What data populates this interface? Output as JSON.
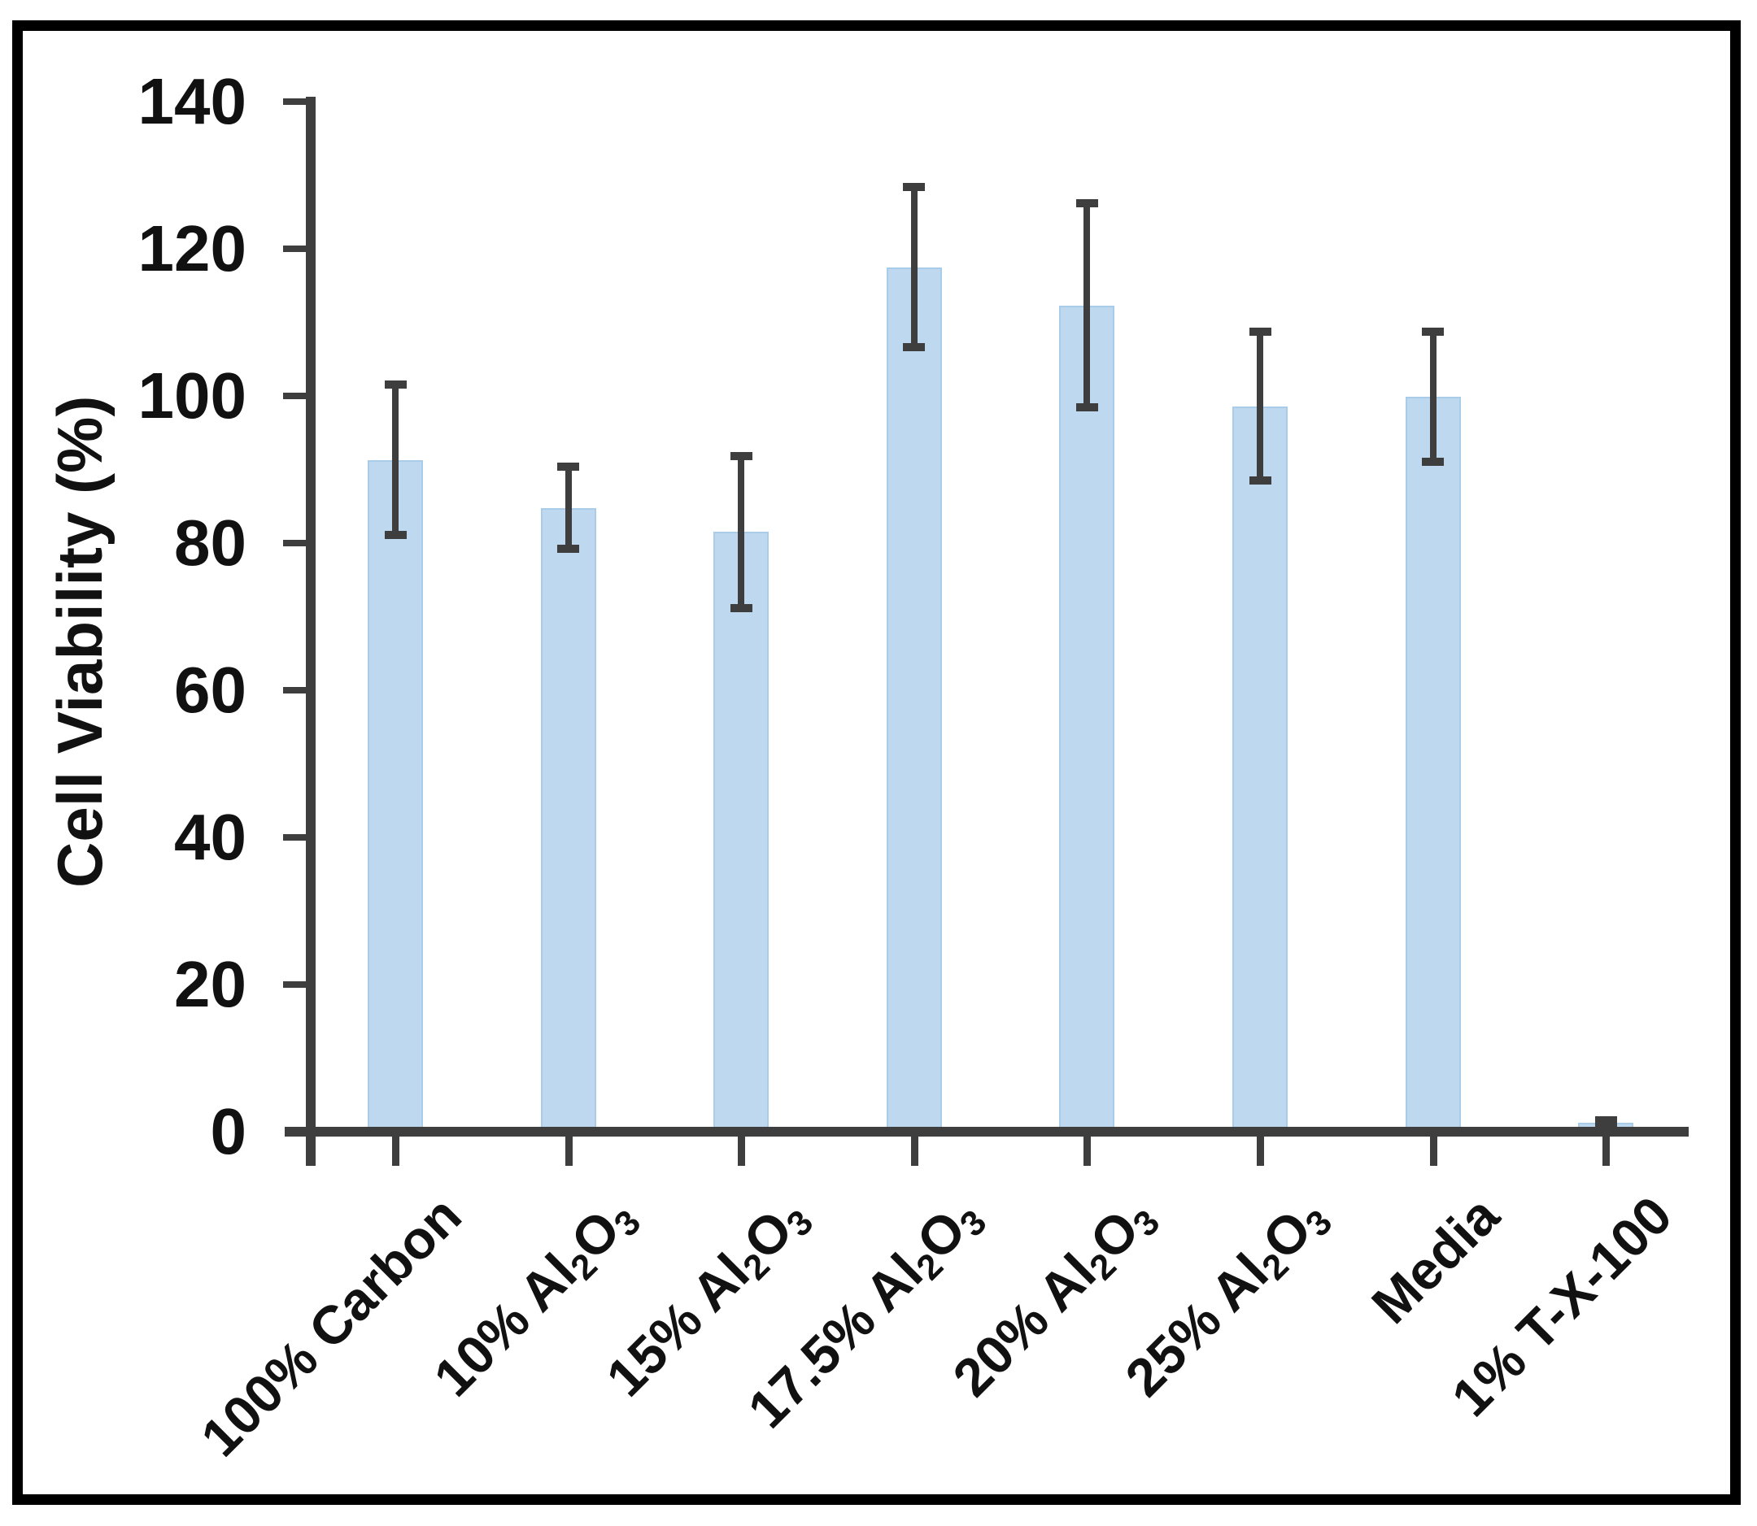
{
  "window": {
    "background": "#ffffff",
    "frame_color": "#000000"
  },
  "chart_data": {
    "type": "bar",
    "title": "",
    "xlabel": "",
    "ylabel": "Cell Viability (%)",
    "ylim": [
      0,
      140
    ],
    "ytick_step": 20,
    "yticks": [
      0,
      20,
      40,
      60,
      80,
      100,
      120,
      140
    ],
    "grid": false,
    "legend": false,
    "bar_color": "#BDD8EF",
    "bar_edge_color": "#A9CCE8",
    "error_bar_color": "#3E3E3E",
    "axis_color": "#3E3E3E",
    "text_color": "#111111",
    "categories": [
      "100% Carbon",
      "10% Al₂O₃",
      "15% Al₂O₃",
      "17.5% Al₂O₃",
      "20% Al₂O₃",
      "25% Al₂O₃",
      "Media",
      "1% T-X-100"
    ],
    "values": [
      91.3,
      84.8,
      81.5,
      117.5,
      112.3,
      98.6,
      99.9,
      1.2
    ],
    "errors_plus": [
      10.2,
      5.6,
      10.3,
      10.9,
      13.9,
      10.1,
      8.8,
      0.4
    ],
    "errors_minus": [
      10.2,
      5.6,
      10.3,
      10.9,
      13.9,
      10.1,
      8.8,
      0.4
    ]
  }
}
